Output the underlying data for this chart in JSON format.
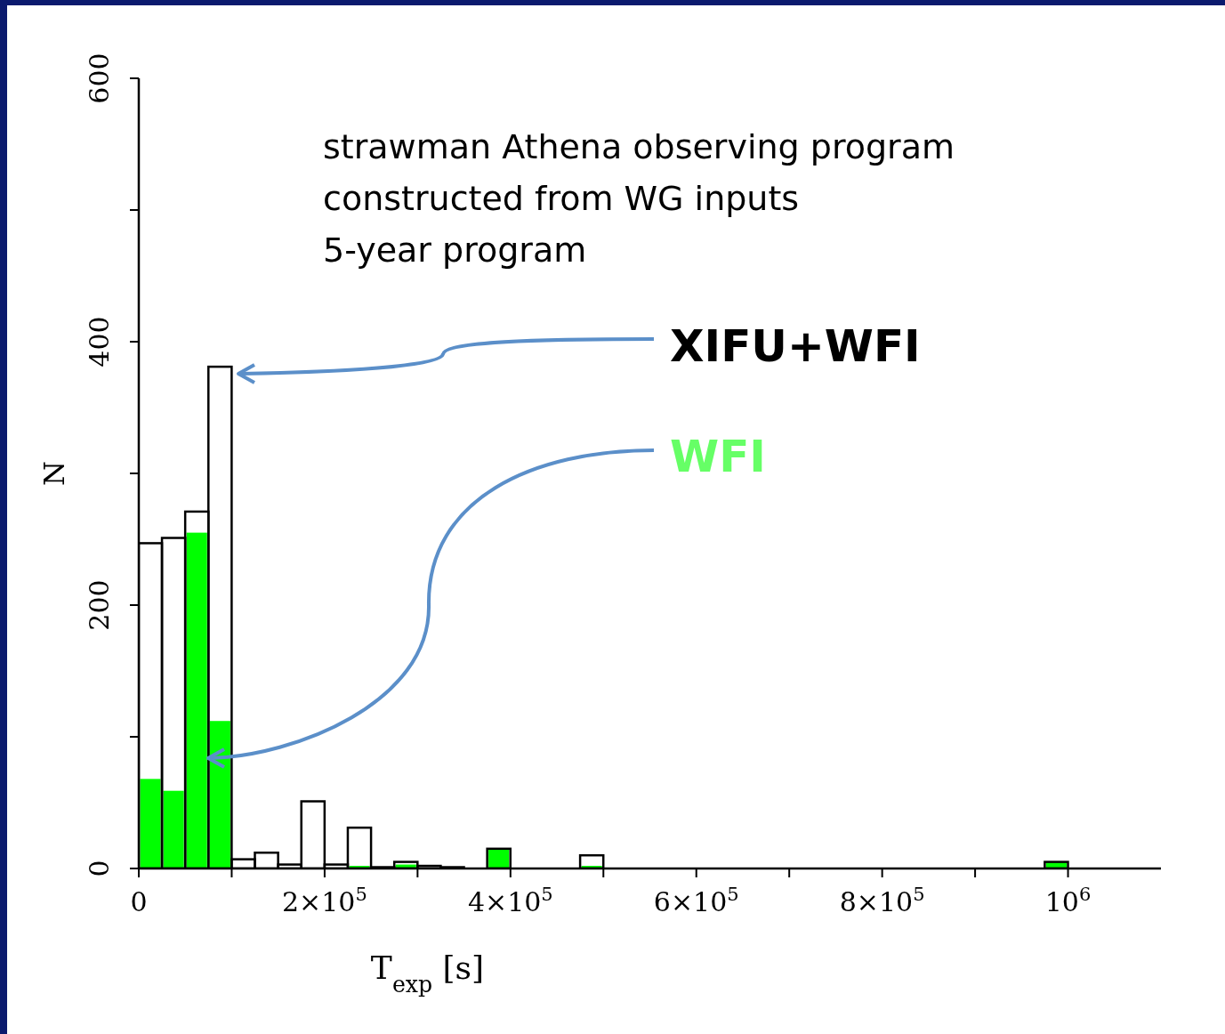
{
  "chart_data": {
    "type": "histogram",
    "annotations": [
      "strawman Athena observing program",
      "constructed from WG inputs",
      "5-year program"
    ],
    "xlabel": "T$_{exp}$ [s]",
    "ylabel": "N",
    "bins": [
      0,
      25000,
      50000,
      75000,
      100000,
      125000,
      150000,
      175000,
      200000,
      225000,
      250000,
      275000,
      300000,
      325000,
      350000,
      375000,
      400000,
      425000,
      450000,
      475000,
      500000,
      525000,
      550000,
      575000,
      600000,
      625000,
      650000,
      675000,
      700000,
      725000,
      750000,
      775000,
      800000,
      825000,
      850000,
      875000,
      900000,
      925000,
      950000,
      975000,
      1000000,
      1025000,
      1050000,
      1075000,
      1100000
    ],
    "series": [
      {
        "name": "XIFU+WFI",
        "color": "#000000",
        "values": [
          247,
          251,
          271,
          381,
          7,
          12,
          3,
          51,
          3,
          31,
          1,
          5,
          2,
          1,
          0,
          15,
          0,
          0,
          0,
          10,
          0,
          0,
          0,
          0,
          0,
          0,
          0,
          0,
          0,
          0,
          0,
          0,
          0,
          0,
          0,
          0,
          0,
          0,
          0,
          5,
          0,
          0,
          0,
          0
        ]
      },
      {
        "name": "WFI",
        "color": "#00ff00",
        "values": [
          68,
          59,
          255,
          112,
          0,
          null,
          null,
          null,
          0,
          2,
          0,
          3,
          0,
          1,
          0,
          15,
          0,
          0,
          0,
          2,
          0,
          0,
          0,
          0,
          0,
          0,
          0,
          0,
          0,
          0,
          0,
          0,
          0,
          0,
          0,
          0,
          0,
          0,
          0,
          5,
          0,
          0,
          0,
          0
        ]
      }
    ],
    "xlim": [
      0,
      1100000
    ],
    "xticks": [
      {
        "value": 0,
        "label": "0"
      },
      {
        "value": 100000,
        "label": null
      },
      {
        "value": 200000,
        "label": "2×10$^{5}$"
      },
      {
        "value": 300000,
        "label": null
      },
      {
        "value": 400000,
        "label": "4×10$^{5}$"
      },
      {
        "value": 500000,
        "label": null
      },
      {
        "value": 600000,
        "label": "6×10$^{5}$"
      },
      {
        "value": 700000,
        "label": null
      },
      {
        "value": 800000,
        "label": "8×10$^{5}$"
      },
      {
        "value": 900000,
        "label": null
      },
      {
        "value": 1000000,
        "label": "10$^{6}$"
      }
    ],
    "ylim": [
      0,
      600
    ],
    "yticks": [
      0,
      {
        "value": 100,
        "label": null
      },
      200,
      {
        "value": 300,
        "label": null
      },
      400,
      {
        "value": 500,
        "label": null
      },
      600
    ],
    "grid": false
  }
}
